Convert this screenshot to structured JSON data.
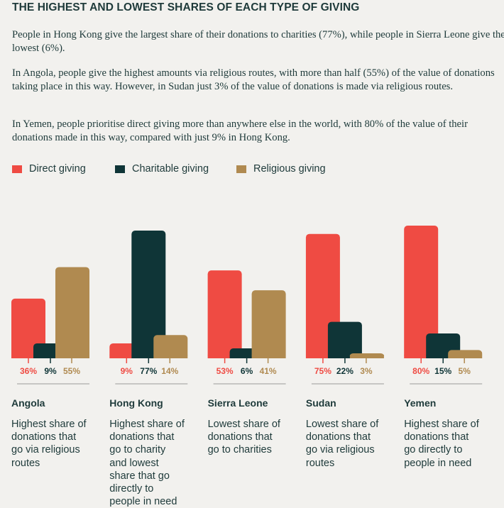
{
  "title": "THE HIGHEST AND LOWEST SHARES OF EACH TYPE OF GIVING",
  "paragraphs": [
    "People in Hong Kong give the largest share of their donations to charities (77%), while people in Sierra Leone give the lowest (6%).",
    "In Angola, people give the highest amounts via religious routes, with more than half (55%) of the value of donations taking place in this way. However, in Sudan just 3% of the value of donations is made via religious routes.",
    "In Yemen, people prioritise direct giving more than anywhere else in the world, with 80% of the value of their donations made in this way, compared with just 9% in Hong Kong."
  ],
  "colors": {
    "direct": "#ef4b43",
    "charitable": "#0f3537",
    "religious": "#b08a50"
  },
  "chart_data": {
    "type": "bar",
    "series_names": [
      "Direct giving",
      "Charitable giving",
      "Religious giving"
    ],
    "legend_position": "top-left",
    "ylim": [
      0,
      80
    ],
    "countries": [
      {
        "name": "Angola",
        "values": [
          36,
          9,
          55
        ],
        "labels": [
          "36%",
          "9%",
          "55%"
        ],
        "description": [
          "Highest share of",
          "donations that",
          "go via religious",
          "routes"
        ]
      },
      {
        "name": "Hong Kong",
        "values": [
          9,
          77,
          14
        ],
        "labels": [
          "9%",
          "77%",
          "14%"
        ],
        "description": [
          "Highest share of",
          "donations that",
          "go to charity",
          "and lowest",
          "share that go",
          "directly to",
          "people in need"
        ]
      },
      {
        "name": "Sierra Leone",
        "values": [
          53,
          6,
          41
        ],
        "labels": [
          "53%",
          "6%",
          "41%"
        ],
        "description": [
          "Lowest share of",
          "donations that",
          "go to charities"
        ]
      },
      {
        "name": "Sudan",
        "values": [
          75,
          22,
          3
        ],
        "labels": [
          "75%",
          "22%",
          "3%"
        ],
        "description": [
          "Lowest share of",
          "donations that",
          "go via religious",
          "routes"
        ]
      },
      {
        "name": "Yemen",
        "values": [
          80,
          15,
          5
        ],
        "labels": [
          "80%",
          "15%",
          "5%"
        ],
        "description": [
          "Highest share of",
          "donations that",
          "go directly to",
          "people in need"
        ]
      }
    ]
  }
}
